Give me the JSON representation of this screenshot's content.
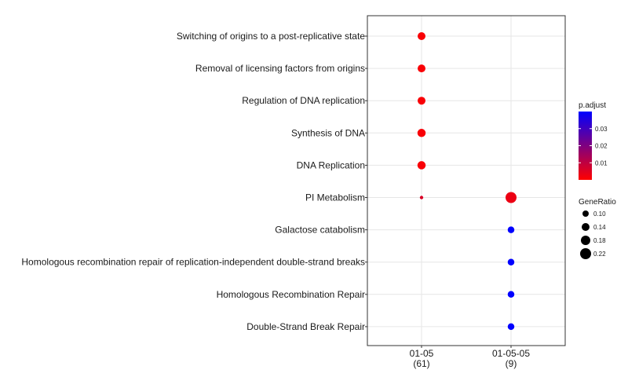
{
  "chart_data": {
    "type": "scatter",
    "title": "",
    "xlabel": "",
    "ylabel": "",
    "categories": [
      "Switching of origins to a post-replicative state",
      "Removal of licensing factors from origins",
      "Regulation of DNA replication",
      "Synthesis of DNA",
      "DNA Replication",
      "PI Metabolism",
      "Galactose catabolism",
      "Homologous recombination repair of replication-independent double-strand breaks",
      "Homologous Recombination Repair",
      "Double-Strand Break Repair"
    ],
    "clusters": [
      {
        "label": "01-05",
        "count": "(61)"
      },
      {
        "label": "01-05-05",
        "count": "(9)"
      }
    ],
    "points": [
      {
        "cluster": 0,
        "category": 0,
        "gene_ratio": 0.14,
        "p_adjust": 0.001
      },
      {
        "cluster": 0,
        "category": 1,
        "gene_ratio": 0.14,
        "p_adjust": 0.001
      },
      {
        "cluster": 0,
        "category": 2,
        "gene_ratio": 0.14,
        "p_adjust": 0.001
      },
      {
        "cluster": 0,
        "category": 3,
        "gene_ratio": 0.15,
        "p_adjust": 0.001
      },
      {
        "cluster": 0,
        "category": 4,
        "gene_ratio": 0.15,
        "p_adjust": 0.001
      },
      {
        "cluster": 0,
        "category": 5,
        "gene_ratio": 0.03,
        "p_adjust": 0.006
      },
      {
        "cluster": 1,
        "category": 5,
        "gene_ratio": 0.22,
        "p_adjust": 0.003
      },
      {
        "cluster": 1,
        "category": 6,
        "gene_ratio": 0.11,
        "p_adjust": 0.04
      },
      {
        "cluster": 1,
        "category": 7,
        "gene_ratio": 0.11,
        "p_adjust": 0.04
      },
      {
        "cluster": 1,
        "category": 8,
        "gene_ratio": 0.11,
        "p_adjust": 0.04
      },
      {
        "cluster": 1,
        "category": 9,
        "gene_ratio": 0.11,
        "p_adjust": 0.04
      }
    ],
    "legend_color": {
      "title": "p.adjust",
      "low_color": "#ff0000",
      "high_color": "#0000ff",
      "ticks": [
        "0.03",
        "0.02",
        "0.01"
      ],
      "tick_values": [
        0.03,
        0.02,
        0.01
      ],
      "range": [
        0.0,
        0.04
      ]
    },
    "legend_size": {
      "title": "GeneRatio",
      "ticks": [
        "0.10",
        "0.14",
        "0.18",
        "0.22"
      ],
      "tick_values": [
        0.1,
        0.14,
        0.18,
        0.22
      ]
    },
    "grid": true,
    "legend_position": "right"
  }
}
